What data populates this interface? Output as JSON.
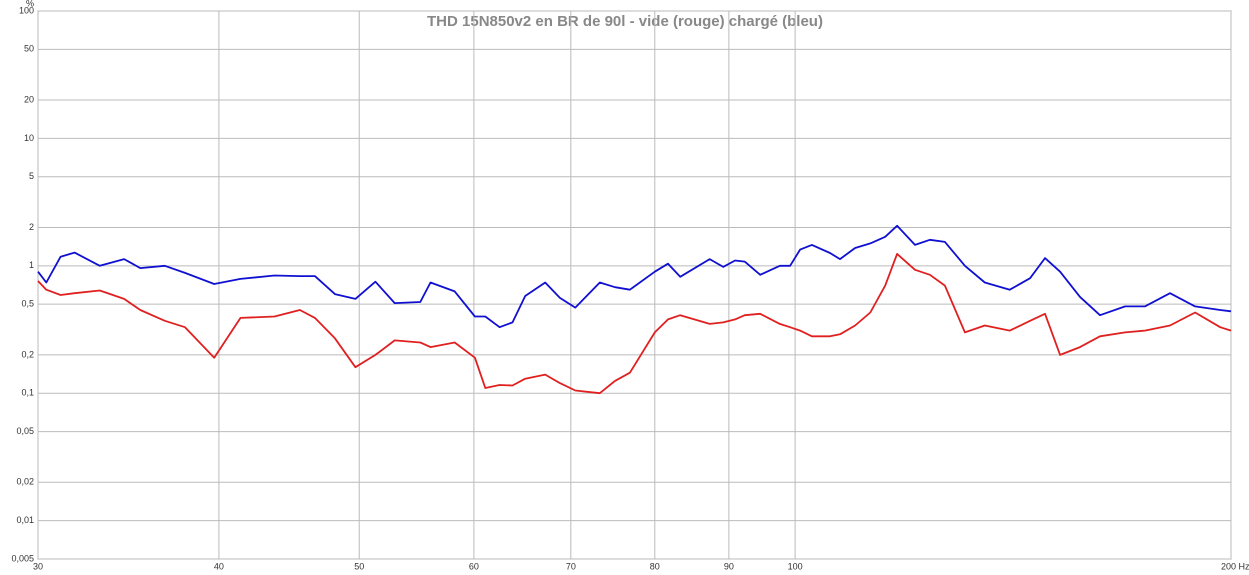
{
  "chart_data": {
    "type": "line",
    "title": "THD 15N850v2 en BR de 90l - vide (rouge) chargé (bleu)",
    "ylabel": "%",
    "xscale": "log",
    "yscale": "log",
    "grid": true,
    "xlim": [
      30,
      200
    ],
    "ylim": [
      0.005,
      100
    ],
    "xticks": [
      30,
      40,
      50,
      60,
      70,
      80,
      90,
      100,
      {
        "value": 200,
        "label": "200 Hz"
      }
    ],
    "yticks": [
      100,
      50,
      20,
      10,
      5,
      2,
      1,
      {
        "value": 0.5,
        "label": "0,5"
      },
      {
        "value": 0.2,
        "label": "0,2"
      },
      {
        "value": 0.1,
        "label": "0,1"
      },
      {
        "value": 0.05,
        "label": "0,05"
      },
      {
        "value": 0.02,
        "label": "0,02"
      },
      {
        "value": 0.01,
        "label": "0,01"
      },
      {
        "value": 0.005,
        "label": "0,005"
      }
    ],
    "x": [
      30.0,
      30.4,
      31.1,
      31.8,
      33.1,
      34.4,
      35.3,
      36.7,
      37.9,
      39.7,
      41.4,
      43.7,
      45.5,
      46.6,
      48.1,
      49.7,
      51.3,
      52.9,
      55.1,
      56.0,
      58.2,
      60.1,
      61.1,
      62.5,
      63.8,
      65.1,
      67.2,
      68.8,
      70.5,
      73.3,
      75.1,
      76.9,
      80.0,
      81.7,
      83.3,
      87.3,
      89.2,
      90.9,
      92.3,
      94.6,
      97.6,
      99.2,
      100.8,
      102.7,
      105.7,
      107.4,
      110.0,
      112.7,
      115.4,
      117.6,
      121.0,
      123.9,
      126.9,
      131.0,
      135.2,
      140.7,
      145.3,
      148.8,
      152.4,
      157.3,
      162.4,
      169.0,
      174.4,
      181.5,
      188.9,
      196.6,
      200.0
    ],
    "series": [
      {
        "color": "#1010d0",
        "values": [
          0.9,
          0.74,
          1.18,
          1.27,
          1.0,
          1.13,
          0.96,
          1.0,
          0.88,
          0.72,
          0.79,
          0.84,
          0.83,
          0.83,
          0.6,
          0.55,
          0.75,
          0.51,
          0.52,
          0.74,
          0.63,
          0.4,
          0.4,
          0.33,
          0.36,
          0.58,
          0.74,
          0.56,
          0.47,
          0.74,
          0.68,
          0.65,
          0.9,
          1.04,
          0.82,
          1.13,
          0.98,
          1.1,
          1.08,
          0.85,
          1.0,
          1.0,
          1.34,
          1.46,
          1.26,
          1.13,
          1.38,
          1.5,
          1.69,
          2.06,
          1.46,
          1.6,
          1.54,
          1.0,
          0.74,
          0.65,
          0.8,
          1.15,
          0.9,
          0.57,
          0.41,
          0.48,
          0.48,
          0.61,
          0.48,
          0.45,
          0.44
        ]
      },
      {
        "color": "#e02020",
        "values": [
          0.76,
          0.65,
          0.59,
          0.61,
          0.64,
          0.55,
          0.45,
          0.37,
          0.33,
          0.19,
          0.39,
          0.4,
          0.45,
          0.39,
          0.27,
          0.16,
          0.2,
          0.26,
          0.25,
          0.23,
          0.25,
          0.19,
          0.11,
          0.116,
          0.115,
          0.13,
          0.14,
          0.12,
          0.105,
          0.1,
          0.125,
          0.145,
          0.3,
          0.38,
          0.41,
          0.35,
          0.36,
          0.38,
          0.41,
          0.42,
          0.35,
          0.33,
          0.31,
          0.28,
          0.28,
          0.29,
          0.34,
          0.43,
          0.7,
          1.24,
          0.93,
          0.85,
          0.7,
          0.3,
          0.34,
          0.31,
          0.37,
          0.42,
          0.2,
          0.23,
          0.28,
          0.3,
          0.31,
          0.34,
          0.43,
          0.33,
          0.31
        ]
      }
    ]
  }
}
